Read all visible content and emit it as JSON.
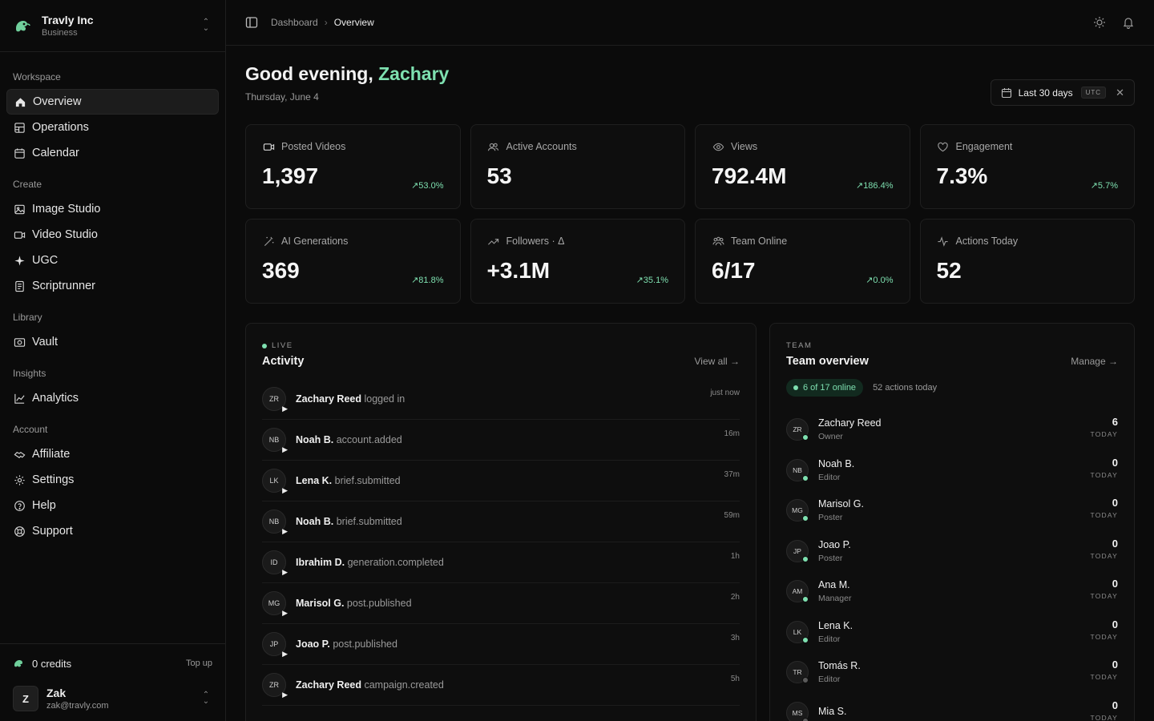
{
  "org": {
    "name": "Travly Inc",
    "plan": "Business"
  },
  "nav": {
    "sections": [
      {
        "title": "Workspace",
        "items": [
          {
            "label": "Overview",
            "icon": "home-icon",
            "active": true
          },
          {
            "label": "Operations",
            "icon": "grid-icon"
          },
          {
            "label": "Calendar",
            "icon": "calendar-icon"
          }
        ]
      },
      {
        "title": "Create",
        "items": [
          {
            "label": "Image Studio",
            "icon": "image-icon"
          },
          {
            "label": "Video Studio",
            "icon": "video-icon"
          },
          {
            "label": "UGC",
            "icon": "sparkle-icon"
          },
          {
            "label": "Scriptrunner",
            "icon": "document-icon"
          }
        ]
      },
      {
        "title": "Library",
        "items": [
          {
            "label": "Vault",
            "icon": "vault-icon"
          }
        ]
      },
      {
        "title": "Insights",
        "items": [
          {
            "label": "Analytics",
            "icon": "chart-line-icon"
          }
        ]
      },
      {
        "title": "Account",
        "items": [
          {
            "label": "Affiliate",
            "icon": "handshake-icon"
          },
          {
            "label": "Settings",
            "icon": "gear-icon"
          },
          {
            "label": "Help",
            "icon": "help-icon"
          },
          {
            "label": "Support",
            "icon": "lifebuoy-icon"
          }
        ]
      }
    ]
  },
  "footer": {
    "credits": "0 credits",
    "topup": "Top up",
    "user": {
      "initial": "Z",
      "name": "Zak",
      "email": "zak@travly.com"
    }
  },
  "breadcrumb": {
    "parent": "Dashboard",
    "current": "Overview"
  },
  "greeting": {
    "prefix": "Good evening,",
    "name": "Zachary",
    "date": "Thursday, June 4"
  },
  "range": {
    "label": "Last 30 days",
    "tz": "UTC"
  },
  "stats": [
    {
      "label": "Posted Videos",
      "icon": "video-icon",
      "value": "1,397",
      "delta": "53.0%"
    },
    {
      "label": "Active Accounts",
      "icon": "users-icon",
      "value": "53",
      "delta": ""
    },
    {
      "label": "Views",
      "icon": "eye-icon",
      "value": "792.4M",
      "delta": "186.4%"
    },
    {
      "label": "Engagement",
      "icon": "heart-icon",
      "value": "7.3%",
      "delta": "5.7%"
    },
    {
      "label": "AI Generations",
      "icon": "wand-icon",
      "value": "369",
      "delta": "81.8%"
    },
    {
      "label": "Followers · Δ",
      "icon": "trending-icon",
      "value": "+3.1M",
      "delta": "35.1%"
    },
    {
      "label": "Team Online",
      "icon": "team-icon",
      "value": "6/17",
      "delta": "0.0%"
    },
    {
      "label": "Actions Today",
      "icon": "activity-icon",
      "value": "52",
      "delta": ""
    }
  ],
  "activity": {
    "eyebrow": "LIVE",
    "title": "Activity",
    "link": "View all",
    "rows": [
      {
        "initials": "ZR",
        "who": "Zachary Reed",
        "action": "logged in",
        "time": "just now"
      },
      {
        "initials": "NB",
        "who": "Noah B.",
        "action": "account.added",
        "time": "16m"
      },
      {
        "initials": "LK",
        "who": "Lena K.",
        "action": "brief.submitted",
        "time": "37m"
      },
      {
        "initials": "NB",
        "who": "Noah B.",
        "action": "brief.submitted",
        "time": "59m"
      },
      {
        "initials": "ID",
        "who": "Ibrahim D.",
        "action": "generation.completed",
        "time": "1h"
      },
      {
        "initials": "MG",
        "who": "Marisol G.",
        "action": "post.published",
        "time": "2h"
      },
      {
        "initials": "JP",
        "who": "Joao P.",
        "action": "post.published",
        "time": "3h"
      },
      {
        "initials": "ZR",
        "who": "Zachary Reed",
        "action": "campaign.created",
        "time": "5h"
      }
    ]
  },
  "team": {
    "eyebrow": "TEAM",
    "title": "Team overview",
    "link": "Manage",
    "online": "6 of 17 online",
    "actions": "52 actions today",
    "members": [
      {
        "initials": "ZR",
        "name": "Zachary Reed",
        "role": "Owner",
        "count": "6",
        "unit": "TODAY",
        "online": true
      },
      {
        "initials": "NB",
        "name": "Noah B.",
        "role": "Editor",
        "count": "0",
        "unit": "TODAY",
        "online": true
      },
      {
        "initials": "MG",
        "name": "Marisol G.",
        "role": "Poster",
        "count": "0",
        "unit": "TODAY",
        "online": true
      },
      {
        "initials": "JP",
        "name": "Joao P.",
        "role": "Poster",
        "count": "0",
        "unit": "TODAY",
        "online": true
      },
      {
        "initials": "AM",
        "name": "Ana M.",
        "role": "Manager",
        "count": "0",
        "unit": "TODAY",
        "online": true
      },
      {
        "initials": "LK",
        "name": "Lena K.",
        "role": "Editor",
        "count": "0",
        "unit": "TODAY",
        "online": true
      },
      {
        "initials": "TR",
        "name": "Tomás R.",
        "role": "Editor",
        "count": "0",
        "unit": "TODAY",
        "online": false
      },
      {
        "initials": "MS",
        "name": "Mia S.",
        "role": "",
        "count": "0",
        "unit": "TODAY",
        "online": false
      }
    ]
  },
  "colors": {
    "accent": "#7ee0b0",
    "offline": "#5a5a5a"
  }
}
